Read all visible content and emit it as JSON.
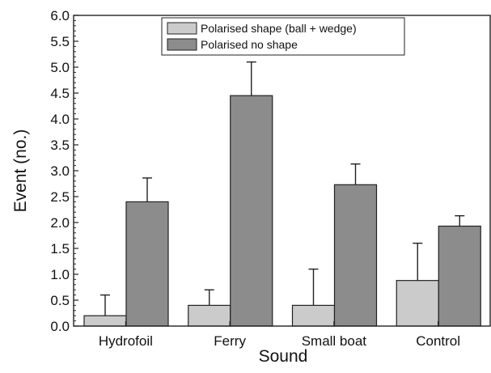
{
  "chart_data": {
    "type": "bar",
    "title": "",
    "xlabel": "Sound",
    "ylabel": "Event (no.)",
    "categories": [
      "Hydrofoil",
      "Ferry",
      "Small boat",
      "Control"
    ],
    "ylim": [
      0,
      6
    ],
    "yticks": [
      "0.0",
      "0.5",
      "1.0",
      "1.5",
      "2.0",
      "2.5",
      "3.0",
      "3.5",
      "4.0",
      "4.5",
      "5.0",
      "5.5",
      "6.0"
    ],
    "legend_position": "top-center",
    "grid": false,
    "series": [
      {
        "name": "Polarised shape (ball + wedge)",
        "color": "#cbcbcb",
        "values": [
          0.2,
          0.4,
          0.4,
          0.88
        ],
        "error_upper": [
          0.6,
          0.7,
          1.1,
          1.6
        ]
      },
      {
        "name": "Polarised no shape",
        "color": "#8c8c8c",
        "values": [
          2.4,
          4.45,
          2.73,
          1.93
        ],
        "error_upper": [
          2.86,
          5.1,
          3.13,
          2.13
        ]
      }
    ]
  }
}
